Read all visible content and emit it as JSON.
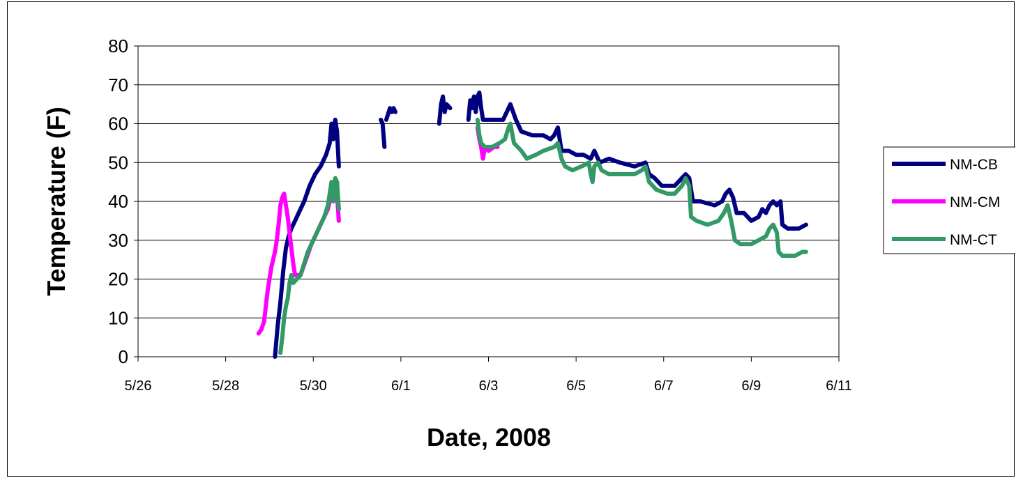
{
  "chart_data": {
    "type": "line",
    "title": "",
    "xlabel": "Date, 2008",
    "ylabel": "Temperature (F)",
    "xlim": [
      "5/26",
      "6/11"
    ],
    "ylim": [
      0,
      80
    ],
    "x_ticks": [
      "5/26",
      "5/28",
      "5/30",
      "6/1",
      "6/3",
      "6/5",
      "6/7",
      "6/9",
      "6/11"
    ],
    "y_ticks": [
      0,
      10,
      20,
      30,
      40,
      50,
      60,
      70,
      80
    ],
    "grid": "horizontal",
    "legend_position": "right",
    "series": [
      {
        "name": "NM-CB",
        "color": "#000080",
        "segments": [
          [
            [
              "2008-05-29 03:00",
              0
            ],
            [
              "2008-05-29 04:30",
              8
            ],
            [
              "2008-05-29 06:00",
              14
            ],
            [
              "2008-05-29 07:30",
              22
            ],
            [
              "2008-05-29 09:00",
              28
            ],
            [
              "2008-05-29 10:30",
              31
            ],
            [
              "2008-05-29 12:00",
              33
            ],
            [
              "2008-05-29 14:00",
              35
            ],
            [
              "2008-05-29 16:00",
              37
            ],
            [
              "2008-05-29 19:00",
              40
            ],
            [
              "2008-05-29 22:00",
              44
            ],
            [
              "2008-05-30 01:00",
              47
            ],
            [
              "2008-05-30 04:00",
              49
            ],
            [
              "2008-05-30 07:00",
              52
            ],
            [
              "2008-05-30 09:00",
              55
            ],
            [
              "2008-05-30 10:00",
              60
            ],
            [
              "2008-05-30 11:00",
              56
            ],
            [
              "2008-05-30 12:00",
              61
            ],
            [
              "2008-05-30 13:00",
              58
            ],
            [
              "2008-05-30 14:00",
              49
            ]
          ],
          [
            [
              "2008-05-31 13:00",
              61
            ],
            [
              "2008-05-31 14:00",
              60
            ],
            [
              "2008-05-31 15:00",
              54
            ]
          ],
          [
            [
              "2008-05-31 16:00",
              61
            ],
            [
              "2008-05-31 18:00",
              64
            ],
            [
              "2008-05-31 19:00",
              63
            ],
            [
              "2008-05-31 20:00",
              64
            ],
            [
              "2008-05-31 21:00",
              63
            ]
          ],
          [
            [
              "2008-06-01 21:00",
              60
            ],
            [
              "2008-06-01 22:00",
              65
            ],
            [
              "2008-06-01 23:00",
              67
            ],
            [
              "2008-06-02 00:00",
              63
            ],
            [
              "2008-06-02 01:00",
              65
            ],
            [
              "2008-06-02 03:00",
              64
            ]
          ],
          [
            [
              "2008-06-02 13:00",
              61
            ],
            [
              "2008-06-02 14:00",
              66
            ],
            [
              "2008-06-02 15:00",
              64
            ],
            [
              "2008-06-02 16:00",
              67
            ],
            [
              "2008-06-02 17:00",
              63
            ],
            [
              "2008-06-02 18:00",
              67
            ],
            [
              "2008-06-02 19:00",
              68
            ],
            [
              "2008-06-02 20:00",
              64
            ],
            [
              "2008-06-02 21:00",
              61
            ],
            [
              "2008-06-02 23:00",
              61
            ],
            [
              "2008-06-03 05:00",
              61
            ],
            [
              "2008-06-03 08:00",
              61
            ],
            [
              "2008-06-03 10:00",
              63
            ],
            [
              "2008-06-03 12:00",
              65
            ],
            [
              "2008-06-03 15:00",
              61
            ],
            [
              "2008-06-03 18:00",
              58
            ],
            [
              "2008-06-04 00:00",
              57
            ],
            [
              "2008-06-04 06:00",
              57
            ],
            [
              "2008-06-04 10:00",
              56
            ],
            [
              "2008-06-04 12:00",
              57
            ],
            [
              "2008-06-04 14:00",
              59
            ],
            [
              "2008-06-04 16:00",
              53
            ],
            [
              "2008-06-04 20:00",
              53
            ],
            [
              "2008-06-05 00:00",
              52
            ],
            [
              "2008-06-05 04:00",
              52
            ],
            [
              "2008-06-05 08:00",
              51
            ],
            [
              "2008-06-05 10:00",
              53
            ],
            [
              "2008-06-05 13:00",
              50
            ],
            [
              "2008-06-05 18:00",
              51
            ],
            [
              "2008-06-06 00:00",
              50
            ],
            [
              "2008-06-06 08:00",
              49
            ],
            [
              "2008-06-06 14:00",
              50
            ],
            [
              "2008-06-06 16:00",
              47
            ],
            [
              "2008-06-06 19:00",
              46
            ],
            [
              "2008-06-06 23:00",
              44
            ],
            [
              "2008-06-07 06:00",
              44
            ],
            [
              "2008-06-07 10:00",
              46
            ],
            [
              "2008-06-07 12:00",
              47
            ],
            [
              "2008-06-07 14:00",
              46
            ],
            [
              "2008-06-07 16:00",
              40
            ],
            [
              "2008-06-07 20:00",
              40
            ],
            [
              "2008-06-08 04:00",
              39
            ],
            [
              "2008-06-08 08:00",
              40
            ],
            [
              "2008-06-08 10:00",
              42
            ],
            [
              "2008-06-08 12:00",
              43
            ],
            [
              "2008-06-08 14:00",
              41
            ],
            [
              "2008-06-08 16:00",
              37
            ],
            [
              "2008-06-08 20:00",
              37
            ],
            [
              "2008-06-09 00:00",
              35
            ],
            [
              "2008-06-09 04:00",
              36
            ],
            [
              "2008-06-09 06:00",
              38
            ],
            [
              "2008-06-09 08:00",
              37
            ],
            [
              "2008-06-09 10:00",
              39
            ],
            [
              "2008-06-09 12:00",
              40
            ],
            [
              "2008-06-09 14:00",
              39
            ],
            [
              "2008-06-09 16:00",
              40
            ],
            [
              "2008-06-09 17:00",
              34
            ],
            [
              "2008-06-09 20:00",
              33
            ],
            [
              "2008-06-10 02:00",
              33
            ],
            [
              "2008-06-10 06:00",
              34
            ]
          ]
        ]
      },
      {
        "name": "NM-CM",
        "color": "#ff00ff",
        "segments": [
          [
            [
              "2008-05-28 18:00",
              6
            ],
            [
              "2008-05-28 19:30",
              7
            ],
            [
              "2008-05-28 21:00",
              9
            ],
            [
              "2008-05-28 22:00",
              13
            ],
            [
              "2008-05-28 23:00",
              17
            ],
            [
              "2008-05-29 00:00",
              20
            ],
            [
              "2008-05-29 01:00",
              23
            ],
            [
              "2008-05-29 02:00",
              25
            ],
            [
              "2008-05-29 03:00",
              27
            ],
            [
              "2008-05-29 04:00",
              30
            ],
            [
              "2008-05-29 05:00",
              34
            ],
            [
              "2008-05-29 06:00",
              39
            ],
            [
              "2008-05-29 07:00",
              41
            ],
            [
              "2008-05-29 08:00",
              42
            ],
            [
              "2008-05-29 09:00",
              39
            ],
            [
              "2008-05-29 10:00",
              36
            ],
            [
              "2008-05-29 11:00",
              32
            ],
            [
              "2008-05-29 12:00",
              28
            ],
            [
              "2008-05-29 13:00",
              24
            ],
            [
              "2008-05-29 14:00",
              21
            ],
            [
              "2008-05-29 15:00",
              21
            ],
            [
              "2008-05-29 17:00",
              21
            ],
            [
              "2008-05-29 20:00",
              25
            ],
            [
              "2008-05-29 23:00",
              29
            ],
            [
              "2008-05-30 02:00",
              32
            ],
            [
              "2008-05-30 05:00",
              35
            ],
            [
              "2008-05-30 08:00",
              38
            ],
            [
              "2008-05-30 10:00",
              42
            ],
            [
              "2008-05-30 11:00",
              44
            ],
            [
              "2008-05-30 12:00",
              45
            ],
            [
              "2008-05-30 13:00",
              42
            ],
            [
              "2008-05-30 14:00",
              35
            ]
          ],
          [
            [
              "2008-06-02 18:00",
              59
            ],
            [
              "2008-06-02 19:00",
              56
            ],
            [
              "2008-06-02 20:00",
              54
            ],
            [
              "2008-06-02 21:00",
              51
            ],
            [
              "2008-06-02 22:00",
              54
            ],
            [
              "2008-06-03 00:00",
              53
            ],
            [
              "2008-06-03 03:00",
              54
            ],
            [
              "2008-06-03 05:00",
              54
            ]
          ]
        ]
      },
      {
        "name": "NM-CT",
        "color": "#339966",
        "segments": [
          [
            [
              "2008-05-29 06:00",
              1
            ],
            [
              "2008-05-29 07:00",
              5
            ],
            [
              "2008-05-29 08:00",
              10
            ],
            [
              "2008-05-29 09:00",
              13
            ],
            [
              "2008-05-29 10:00",
              15
            ],
            [
              "2008-05-29 11:00",
              19
            ],
            [
              "2008-05-29 12:00",
              21
            ],
            [
              "2008-05-29 13:00",
              19
            ],
            [
              "2008-05-29 15:00",
              20
            ],
            [
              "2008-05-29 17:00",
              21
            ],
            [
              "2008-05-29 19:00",
              24
            ],
            [
              "2008-05-29 21:00",
              27
            ],
            [
              "2008-05-30 00:00",
              30
            ],
            [
              "2008-05-30 03:00",
              33
            ],
            [
              "2008-05-30 06:00",
              36
            ],
            [
              "2008-05-30 08:00",
              39
            ],
            [
              "2008-05-30 09:00",
              42
            ],
            [
              "2008-05-30 10:00",
              45
            ],
            [
              "2008-05-30 11:00",
              40
            ],
            [
              "2008-05-30 12:00",
              46
            ],
            [
              "2008-05-30 13:00",
              45
            ],
            [
              "2008-05-30 14:00",
              38
            ]
          ],
          [
            [
              "2008-06-02 18:00",
              61
            ],
            [
              "2008-06-02 19:00",
              57
            ],
            [
              "2008-06-02 20:00",
              55
            ],
            [
              "2008-06-02 22:00",
              54
            ],
            [
              "2008-06-03 02:00",
              54
            ],
            [
              "2008-06-03 06:00",
              55
            ],
            [
              "2008-06-03 09:00",
              56
            ],
            [
              "2008-06-03 11:00",
              59
            ],
            [
              "2008-06-03 12:00",
              60
            ],
            [
              "2008-06-03 14:00",
              55
            ],
            [
              "2008-06-03 18:00",
              53
            ],
            [
              "2008-06-03 21:00",
              51
            ],
            [
              "2008-06-04 02:00",
              52
            ],
            [
              "2008-06-04 06:00",
              53
            ],
            [
              "2008-06-04 12:00",
              54
            ],
            [
              "2008-06-04 14:00",
              55
            ],
            [
              "2008-06-04 16:00",
              51
            ],
            [
              "2008-06-04 18:00",
              49
            ],
            [
              "2008-06-04 22:00",
              48
            ],
            [
              "2008-06-05 03:00",
              49
            ],
            [
              "2008-06-05 07:00",
              50
            ],
            [
              "2008-06-05 08:00",
              47
            ],
            [
              "2008-06-05 09:00",
              45
            ],
            [
              "2008-06-05 10:00",
              49
            ],
            [
              "2008-06-05 12:00",
              50
            ],
            [
              "2008-06-05 14:00",
              48
            ],
            [
              "2008-06-05 18:00",
              47
            ],
            [
              "2008-06-06 02:00",
              47
            ],
            [
              "2008-06-06 08:00",
              47
            ],
            [
              "2008-06-06 12:00",
              48
            ],
            [
              "2008-06-06 14:00",
              49
            ],
            [
              "2008-06-06 16:00",
              45
            ],
            [
              "2008-06-06 20:00",
              43
            ],
            [
              "2008-06-07 02:00",
              42
            ],
            [
              "2008-06-07 06:00",
              42
            ],
            [
              "2008-06-07 10:00",
              44
            ],
            [
              "2008-06-07 12:00",
              46
            ],
            [
              "2008-06-07 14:00",
              44
            ],
            [
              "2008-06-07 15:00",
              36
            ],
            [
              "2008-06-07 18:00",
              35
            ],
            [
              "2008-06-08 00:00",
              34
            ],
            [
              "2008-06-08 06:00",
              35
            ],
            [
              "2008-06-08 09:00",
              37
            ],
            [
              "2008-06-08 11:00",
              39
            ],
            [
              "2008-06-08 13:00",
              35
            ],
            [
              "2008-06-08 15:00",
              30
            ],
            [
              "2008-06-08 18:00",
              29
            ],
            [
              "2008-06-09 00:00",
              29
            ],
            [
              "2008-06-09 04:00",
              30
            ],
            [
              "2008-06-09 08:00",
              31
            ],
            [
              "2008-06-09 10:00",
              33
            ],
            [
              "2008-06-09 12:00",
              34
            ],
            [
              "2008-06-09 14:00",
              32
            ],
            [
              "2008-06-09 15:00",
              27
            ],
            [
              "2008-06-09 17:00",
              26
            ],
            [
              "2008-06-10 00:00",
              26
            ],
            [
              "2008-06-10 04:00",
              27
            ],
            [
              "2008-06-10 06:00",
              27
            ]
          ]
        ]
      }
    ]
  }
}
